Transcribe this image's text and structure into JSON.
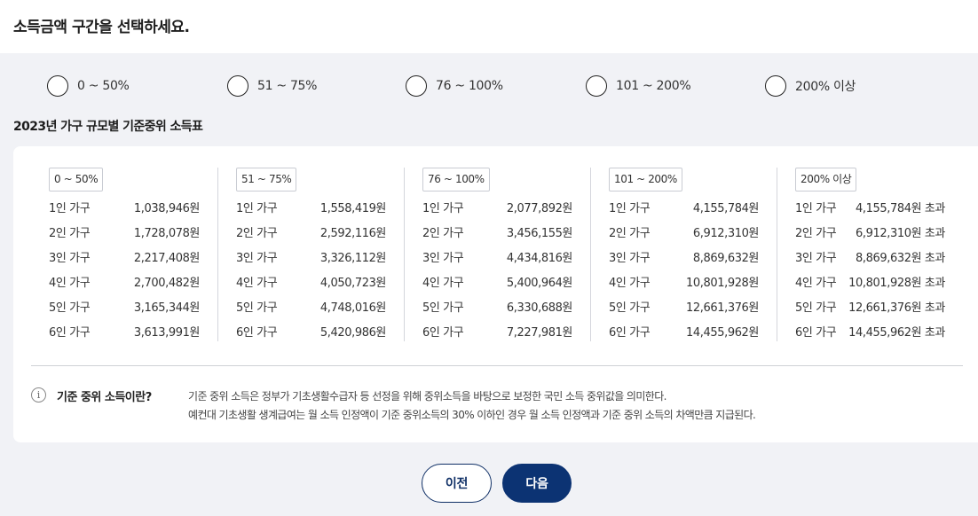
{
  "header": {
    "title": "소득금액 구간을 선택하세요."
  },
  "income_options": [
    "0 ~ 50%",
    "51 ~ 75%",
    "76 ~ 100%",
    "101 ~ 200%",
    "200% 이상"
  ],
  "table": {
    "title": "2023년 가구 규모별 기준중위 소득표",
    "columns": [
      {
        "range": "0 ~ 50%",
        "rows": [
          {
            "household": "1인 가구",
            "amount": "1,038,946원"
          },
          {
            "household": "2인 가구",
            "amount": "1,728,078원"
          },
          {
            "household": "3인 가구",
            "amount": "2,217,408원"
          },
          {
            "household": "4인 가구",
            "amount": "2,700,482원"
          },
          {
            "household": "5인 가구",
            "amount": "3,165,344원"
          },
          {
            "household": "6인 가구",
            "amount": "3,613,991원"
          }
        ]
      },
      {
        "range": "51 ~ 75%",
        "rows": [
          {
            "household": "1인 가구",
            "amount": "1,558,419원"
          },
          {
            "household": "2인 가구",
            "amount": "2,592,116원"
          },
          {
            "household": "3인 가구",
            "amount": "3,326,112원"
          },
          {
            "household": "4인 가구",
            "amount": "4,050,723원"
          },
          {
            "household": "5인 가구",
            "amount": "4,748,016원"
          },
          {
            "household": "6인 가구",
            "amount": "5,420,986원"
          }
        ]
      },
      {
        "range": "76 ~ 100%",
        "rows": [
          {
            "household": "1인 가구",
            "amount": "2,077,892원"
          },
          {
            "household": "2인 가구",
            "amount": "3,456,155원"
          },
          {
            "household": "3인 가구",
            "amount": "4,434,816원"
          },
          {
            "household": "4인 가구",
            "amount": "5,400,964원"
          },
          {
            "household": "5인 가구",
            "amount": "6,330,688원"
          },
          {
            "household": "6인 가구",
            "amount": "7,227,981원"
          }
        ]
      },
      {
        "range": "101 ~ 200%",
        "rows": [
          {
            "household": "1인 가구",
            "amount": "4,155,784원"
          },
          {
            "household": "2인 가구",
            "amount": "6,912,310원"
          },
          {
            "household": "3인 가구",
            "amount": "8,869,632원"
          },
          {
            "household": "4인 가구",
            "amount": "10,801,928원"
          },
          {
            "household": "5인 가구",
            "amount": "12,661,376원"
          },
          {
            "household": "6인 가구",
            "amount": "14,455,962원"
          }
        ]
      },
      {
        "range": "200% 이상",
        "rows": [
          {
            "household": "1인 가구",
            "amount": "4,155,784원 초과"
          },
          {
            "household": "2인 가구",
            "amount": "6,912,310원 초과"
          },
          {
            "household": "3인 가구",
            "amount": "8,869,632원 초과"
          },
          {
            "household": "4인 가구",
            "amount": "10,801,928원 초과"
          },
          {
            "household": "5인 가구",
            "amount": "12,661,376원 초과"
          },
          {
            "household": "6인 가구",
            "amount": "14,455,962원 초과"
          }
        ]
      }
    ]
  },
  "info": {
    "icon": "i",
    "heading": "기준 중위 소득이란?",
    "line1": "기준 중위 소득은 정부가 기초생활수급자 등 선정을 위해 중위소득을 바탕으로 보정한 국민 소득 중위값을 의미한다.",
    "line2": "예컨대 기초생활 생계급여는 월 소득 인정액이 기준 중위소득의 30% 이하인 경우 월 소득 인정액과 기준 중위 소득의 차액만큼 지급된다."
  },
  "buttons": {
    "prev": "이전",
    "next": "다음"
  },
  "colors": {
    "panel_bg": "#f1f2f6",
    "primary": "#0c3373"
  }
}
